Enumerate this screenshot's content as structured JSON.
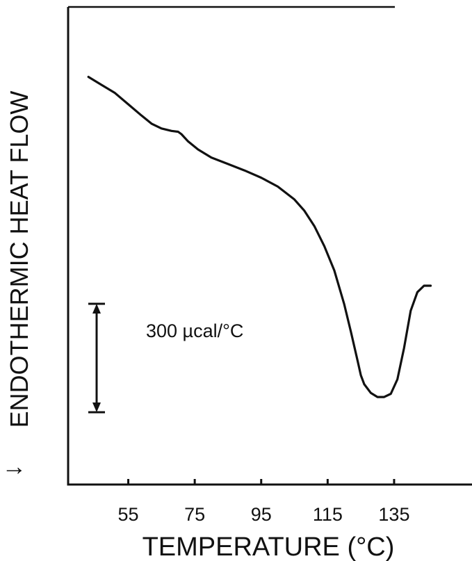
{
  "chart_data": {
    "type": "line",
    "xlabel": "TEMPERATURE (°C)",
    "ylabel": "ENDOTHERMIC HEAT FLOW",
    "ylabel_arrow": "↓",
    "xticks": [
      55,
      75,
      95,
      115,
      135
    ],
    "xlim": [
      37,
      150
    ],
    "grid": false,
    "scale_bar": {
      "label": "300 µcal/°C",
      "value_ucal_per_c": 300
    },
    "series": [
      {
        "x": [
          43,
          47,
          51,
          55,
          59,
          62,
          65,
          68,
          70,
          71,
          73,
          76,
          80,
          85,
          90,
          95,
          100,
          105,
          108,
          111,
          114,
          117,
          120,
          122,
          124,
          125,
          126,
          128,
          130,
          132,
          134,
          136,
          138,
          140,
          142,
          144,
          146
        ],
        "y": [
          1.4,
          1.3,
          1.2,
          1.06,
          0.92,
          0.82,
          0.76,
          0.73,
          0.72,
          0.69,
          0.6,
          0.5,
          0.4,
          0.32,
          0.24,
          0.15,
          0.04,
          -0.12,
          -0.26,
          -0.45,
          -0.7,
          -1.0,
          -1.42,
          -1.76,
          -2.12,
          -2.3,
          -2.41,
          -2.52,
          -2.57,
          -2.57,
          -2.53,
          -2.35,
          -1.96,
          -1.5,
          -1.27,
          -1.19,
          -1.19
        ]
      }
    ]
  }
}
